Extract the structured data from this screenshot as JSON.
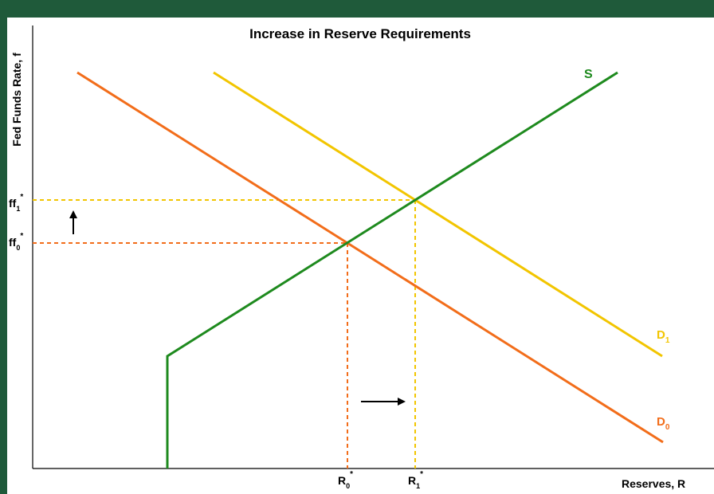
{
  "title": "Increase in Reserve Requirements",
  "y_axis_label": "Fed Funds Rate, f",
  "x_axis_label": "Reserves, R",
  "curves": {
    "supply": {
      "label": "S",
      "color": "#1e8a1e"
    },
    "demand0": {
      "label": "D",
      "sub": "0",
      "color": "#f26d1a"
    },
    "demand1": {
      "label": "D",
      "sub": "1",
      "color": "#f2c500"
    }
  },
  "y_ticks": {
    "ff1": {
      "main": "ff",
      "sub": "1",
      "sup": "*"
    },
    "ff0": {
      "main": "ff",
      "sub": "0",
      "sup": "*"
    }
  },
  "x_ticks": {
    "r0": {
      "main": "R",
      "sub": "0",
      "sup": "*"
    },
    "r1": {
      "main": "R",
      "sub": "1",
      "sup": "*"
    }
  },
  "colors": {
    "background": "#1f5a3a",
    "arrow": "#000000"
  }
}
